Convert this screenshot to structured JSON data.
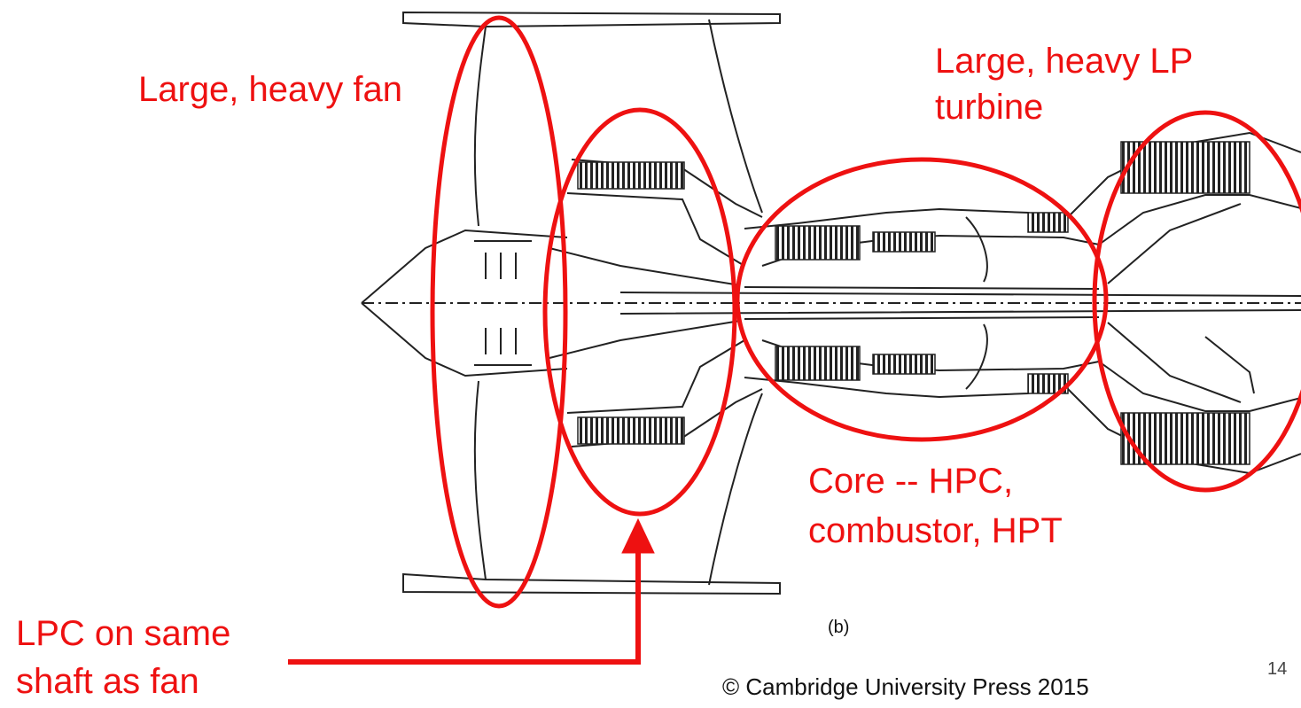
{
  "annotations": {
    "fan": "Large, heavy fan",
    "lpt_line1": "Large, heavy LP",
    "lpt_line2": "turbine",
    "core_line1": "Core -- HPC,",
    "core_line2": "combustor, HPT",
    "lpc_line1": "LPC on same",
    "lpc_line2": "shaft as fan"
  },
  "figure": {
    "panel_label": "(b)"
  },
  "footer": {
    "copyright": "© Cambridge University Press 2015",
    "page_number": "14"
  },
  "colors": {
    "annotation": "#ee1111",
    "drawing": "#222222"
  },
  "icons": {
    "pointer": "up-arrow-icon"
  }
}
